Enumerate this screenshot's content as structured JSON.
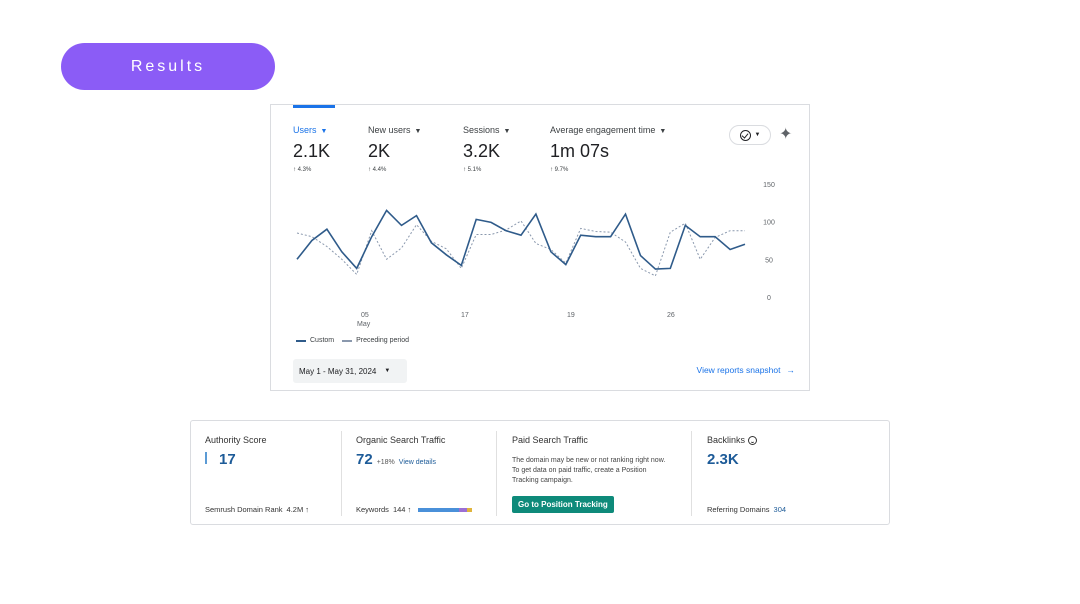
{
  "results_label": "Results",
  "ga": {
    "metrics": [
      {
        "label": "Users",
        "value": "2.1K",
        "change": "↑ 4.3%",
        "active": true
      },
      {
        "label": "New users",
        "value": "2K",
        "change": "↑ 4.4%",
        "active": false
      },
      {
        "label": "Sessions",
        "value": "3.2K",
        "change": "↑ 5.1%",
        "active": false
      },
      {
        "label": "Average engagement time",
        "value": "1m 07s",
        "change": "↑ 9.7%",
        "active": false
      }
    ],
    "legend": {
      "current": "Custom",
      "previous": "Preceding period"
    },
    "date_range": "May 1 - May 31, 2024",
    "view_snapshot": "View reports snapshot",
    "colors": {
      "accent": "#1a73e8",
      "current_line": "#2f5b8a",
      "previous_line": "#8a98ad"
    }
  },
  "chart_data": {
    "type": "line",
    "x_tick_labels": [
      "05",
      "17",
      "19",
      "26"
    ],
    "x_month_label": "May",
    "y_ticks": [
      0,
      50,
      100,
      150
    ],
    "ylim": [
      0,
      150
    ],
    "series": [
      {
        "name": "Custom",
        "style": "solid",
        "values": [
          50,
          75,
          90,
          60,
          38,
          80,
          115,
          95,
          108,
          72,
          56,
          42,
          103,
          99,
          88,
          82,
          110,
          60,
          43,
          82,
          80,
          80,
          110,
          55,
          37,
          38,
          95,
          80,
          80,
          63,
          70
        ]
      },
      {
        "name": "Preceding period",
        "style": "dashed",
        "values": [
          85,
          80,
          67,
          50,
          30,
          88,
          50,
          65,
          96,
          74,
          64,
          38,
          83,
          83,
          89,
          101,
          71,
          63,
          45,
          91,
          87,
          86,
          73,
          38,
          28,
          86,
          98,
          50,
          79,
          88,
          88
        ]
      }
    ]
  },
  "semrush": {
    "authority": {
      "title": "Authority Score",
      "value": "17",
      "foot_label": "Semrush Domain Rank",
      "foot_value": "4.2M ↑"
    },
    "organic": {
      "title": "Organic Search Traffic",
      "value": "72",
      "change": "+18%",
      "link": "View details",
      "foot_label": "Keywords",
      "foot_value": "144 ↑"
    },
    "paid": {
      "title": "Paid Search Traffic",
      "desc": "The domain may be new or not ranking right now. To get data on paid traffic, create a Position Tracking campaign.",
      "button": "Go to Position Tracking"
    },
    "backlinks": {
      "title": "Backlinks",
      "value": "2.3K",
      "foot_label": "Referring Domains",
      "foot_value": "304"
    },
    "keyword_bar_colors": [
      "#4a90d9",
      "#4a90d9",
      "#9b6fd4",
      "#e0b43c"
    ],
    "keyword_bar_shares": [
      0.45,
      0.3,
      0.15,
      0.1
    ]
  }
}
